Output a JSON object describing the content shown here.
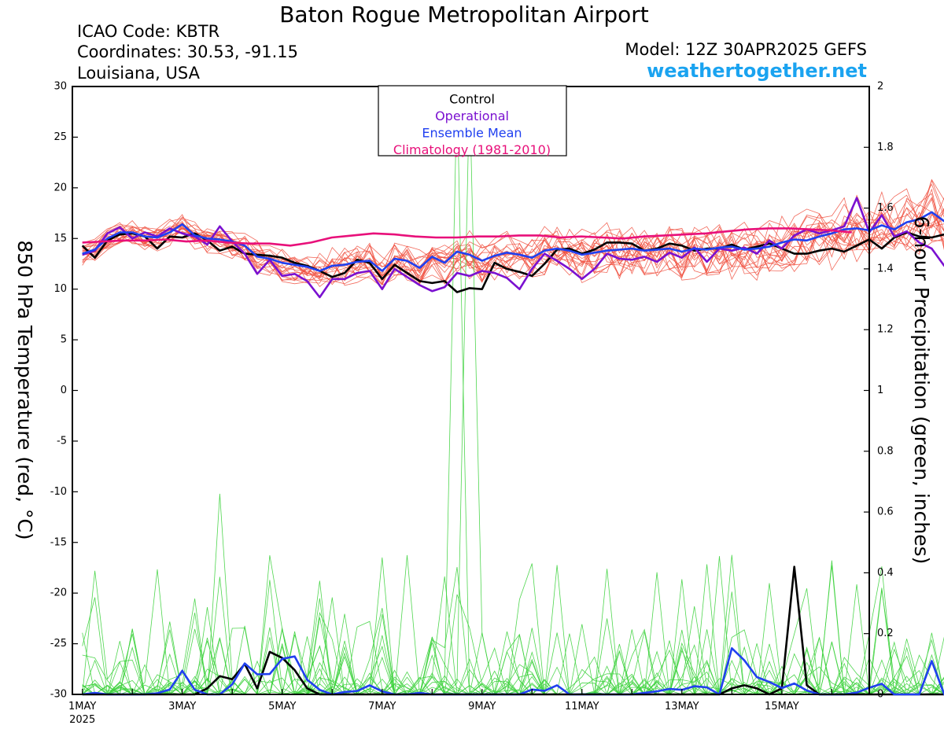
{
  "header": {
    "title": "Baton Rogue Metropolitan Airport",
    "icao": "ICAO Code: KBTR",
    "coordinates": "Coordinates: 30.53, -91.15",
    "location": "Louisiana, USA",
    "model": "Model: 12Z 30APR2025 GEFS",
    "website": "weathertogether.net"
  },
  "colors": {
    "ensemble_temp": "#f05040",
    "ensemble_precip": "#3cd23c",
    "control": "#000000",
    "operational": "#7a10d0",
    "ensemble_mean": "#2040f0",
    "climatology": "#e8107a",
    "website": "#1aa3f0"
  },
  "chart_data": {
    "type": "line",
    "ylabel": "850 hPa Temperature (red, °C)",
    "y2label": "6-hour Precipitation (green, inches)",
    "ylim": [
      -30,
      30
    ],
    "y2lim": [
      0,
      2
    ],
    "y_ticks": [
      "30",
      "25",
      "20",
      "15",
      "10",
      "5",
      "0",
      "-5",
      "-10",
      "-15",
      "-20",
      "-25",
      "-30"
    ],
    "y2_ticks": [
      "2",
      "1.8",
      "1.6",
      "1.4",
      "1.2",
      "1",
      "0.8",
      "0.6",
      "0.4",
      "0.2",
      "0"
    ],
    "x_tick_labels": [
      "1MAY",
      "3MAY",
      "5MAY",
      "7MAY",
      "9MAY",
      "11MAY",
      "13MAY",
      "15MAY"
    ],
    "x_year_label": "2025",
    "x_unit": "day of May 2025",
    "xlim": [
      0.8,
      16.75
    ],
    "x_start": 1.0,
    "x_step": 0.25,
    "legend": {
      "placement": "top-center",
      "entries": [
        "Control",
        "Operational",
        "Ensemble Mean",
        "Climatology (1981-2010)"
      ]
    },
    "series": [
      {
        "name": "Control",
        "axis": "temperature",
        "values": [
          14.3,
          13.1,
          14.8,
          15.4,
          15.5,
          15.2,
          14.0,
          15.2,
          15.1,
          15.5,
          14.8,
          13.8,
          14.2,
          13.5,
          13.4,
          13.3,
          13.1,
          12.6,
          12.3,
          11.8,
          11.2,
          11.6,
          12.9,
          12.6,
          11.0,
          12.4,
          11.6,
          10.8,
          10.6,
          10.8,
          9.7,
          10.1,
          10.0,
          12.6,
          12.0,
          11.7,
          11.3,
          12.5,
          13.9,
          14.0,
          13.5,
          13.9,
          14.6,
          14.6,
          14.5,
          13.8,
          14.0,
          14.5,
          14.3,
          13.8,
          14.0,
          14.0,
          14.4,
          13.9,
          14.2,
          14.5,
          14.0,
          13.5,
          13.5,
          13.8,
          14.0,
          13.7,
          14.3,
          14.9,
          14.0,
          15.1,
          15.6,
          15.2,
          15.1,
          15.4,
          15.8,
          15.3,
          14.8
        ]
      },
      {
        "name": "Operational",
        "axis": "temperature",
        "values": [
          13.4,
          13.8,
          15.5,
          16.1,
          15.0,
          15.6,
          15.2,
          16.0,
          15.5,
          15.2,
          14.4,
          16.2,
          14.7,
          13.5,
          11.5,
          12.9,
          11.3,
          11.5,
          10.8,
          9.2,
          11.0,
          11.0,
          11.6,
          11.8,
          10.0,
          12.0,
          11.2,
          10.4,
          9.8,
          10.2,
          11.6,
          11.3,
          11.8,
          11.6,
          11.1,
          10.0,
          12.0,
          13.5,
          12.8,
          12.0,
          11.0,
          12.0,
          13.5,
          13.0,
          12.9,
          13.2,
          12.7,
          13.6,
          13.1,
          14.1,
          12.7,
          14.0,
          13.8,
          14.1,
          13.5,
          14.8,
          14.0,
          15.3,
          15.9,
          15.5,
          15.8,
          16.2,
          19.0,
          15.6,
          17.3,
          15.2,
          15.7,
          14.6,
          14.0,
          12.3,
          11.8,
          11.9,
          12.0
        ]
      },
      {
        "name": "Ensemble Mean",
        "axis": "temperature",
        "values": [
          13.5,
          13.9,
          15.0,
          15.6,
          15.6,
          15.2,
          15.1,
          15.6,
          16.4,
          15.3,
          15.0,
          14.9,
          14.7,
          14.3,
          13.2,
          13.0,
          12.6,
          12.4,
          12.2,
          11.8,
          12.3,
          12.4,
          12.7,
          12.8,
          11.8,
          13.0,
          12.8,
          12.1,
          13.2,
          12.6,
          13.7,
          13.4,
          12.8,
          13.3,
          13.6,
          13.4,
          13.1,
          13.8,
          14.0,
          13.8,
          13.4,
          13.6,
          13.8,
          13.9,
          14.0,
          13.8,
          13.9,
          14.0,
          13.7,
          14.0,
          13.9,
          14.1,
          14.2,
          13.9,
          14.0,
          14.2,
          14.6,
          14.9,
          14.8,
          15.2,
          15.5,
          15.9,
          16.0,
          15.8,
          16.3,
          15.9,
          16.6,
          16.9,
          17.6,
          16.7,
          17.1,
          17.5,
          17.3
        ]
      },
      {
        "name": "Climatology (1981-2010)",
        "axis": "temperature",
        "values": [
          14.6,
          14.7,
          14.8,
          14.8,
          14.9,
          14.7,
          14.8,
          14.6,
          14.5,
          14.5,
          14.3,
          14.6,
          15.1,
          15.3,
          15.5,
          15.4,
          15.2,
          15.1,
          15.1,
          15.2,
          15.2,
          15.3,
          15.3,
          15.1,
          15.2,
          15.1,
          15.0,
          15.2,
          15.3,
          15.4,
          15.5,
          15.7,
          15.9,
          16.0,
          16.0,
          15.9,
          15.8,
          15.6
        ]
      },
      {
        "name": "Control",
        "axis": "precipitation",
        "values": [
          0.0,
          0.0,
          0.0,
          0.0,
          0.0,
          0.0,
          0.0,
          0.0,
          0.0,
          0.0,
          0.02,
          0.06,
          0.05,
          0.1,
          0.02,
          0.14,
          0.12,
          0.08,
          0.02,
          0.0,
          0.0,
          0.0,
          0.0,
          0.0,
          0.0,
          0.0,
          0.0,
          0.0,
          0.0,
          0.0,
          0.0,
          0.0,
          0.0,
          0.0,
          0.0,
          0.0,
          0.0,
          0.0,
          0.0,
          0.0,
          0.0,
          0.0,
          0.0,
          0.0,
          0.0,
          0.0,
          0.0,
          0.0,
          0.0,
          0.0,
          0.0,
          0.0,
          0.02,
          0.03,
          0.02,
          0.0,
          0.02,
          0.42,
          0.03,
          0.0,
          0.0,
          0.0,
          0.0,
          0.0,
          0.0,
          0.0,
          0.0,
          0.0,
          0.0,
          0.0,
          0.0,
          0.0,
          0.0
        ]
      },
      {
        "name": "Ensemble Mean",
        "axis": "precipitation",
        "values": [
          0.0,
          0.005,
          0.0,
          0.0,
          0.0,
          0.0,
          0.004,
          0.016,
          0.078,
          0.015,
          0.0,
          0.0,
          0.033,
          0.102,
          0.066,
          0.067,
          0.117,
          0.125,
          0.048,
          0.015,
          0.0,
          0.008,
          0.011,
          0.03,
          0.01,
          0.0,
          0.0,
          0.005,
          0.0,
          0.0,
          0.0,
          0.0,
          0.0,
          0.0,
          0.0,
          0.0,
          0.016,
          0.012,
          0.03,
          0.0,
          0.0,
          0.0,
          0.0,
          0.0,
          0.0,
          0.005,
          0.01,
          0.018,
          0.015,
          0.027,
          0.023,
          0.0,
          0.152,
          0.112,
          0.057,
          0.041,
          0.021,
          0.036,
          0.013,
          0.0,
          0.0,
          0.0,
          0.006,
          0.022,
          0.035,
          0.0,
          0.0,
          0.0,
          0.11,
          0.0,
          0.028,
          0.0,
          0.02
        ]
      }
    ]
  }
}
